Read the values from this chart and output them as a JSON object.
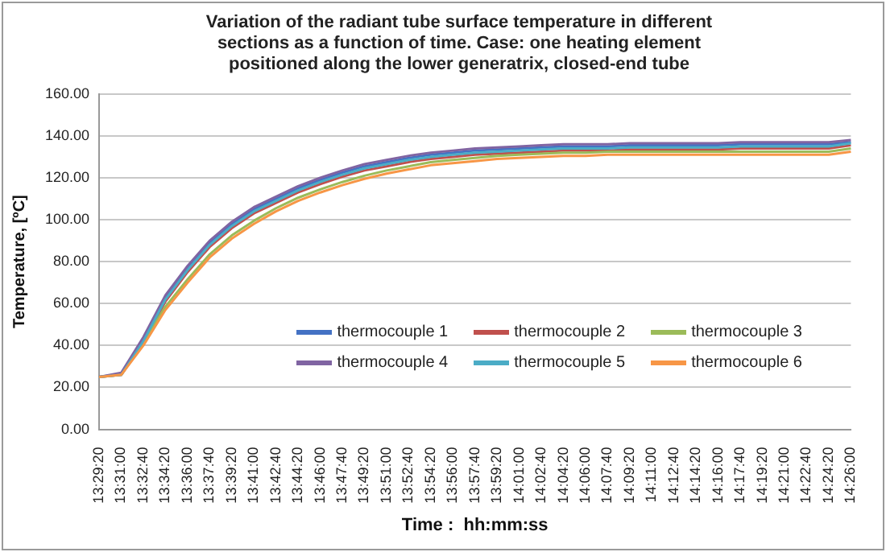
{
  "chart_data": {
    "type": "line",
    "title": "Variation of the radiant tube surface temperature in different sections as a function of time. Case: one heating element positioned along the lower generatrix, closed-end tube",
    "xlabel": "Time :  hh:mm:ss",
    "ylabel": "Temperature, [ºC]",
    "categories": [
      "13:29:20",
      "13:31:00",
      "13:32:40",
      "13:34:20",
      "13:36:00",
      "13:37:40",
      "13:39:20",
      "13:41:00",
      "13:42:40",
      "13:44:20",
      "13:46:00",
      "13:47:40",
      "13:49:20",
      "13:51:00",
      "13:52:40",
      "13:54:20",
      "13:56:00",
      "13:57:40",
      "13:59:20",
      "14:01:00",
      "14:02:40",
      "14:04:20",
      "14:06:00",
      "14:07:40",
      "14:09:20",
      "14:11:00",
      "14:12:40",
      "14:14:20",
      "14:16:00",
      "14:17:40",
      "14:19:20",
      "14:21:00",
      "14:22:40",
      "14:24:20",
      "14:26:00"
    ],
    "series": [
      {
        "name": "thermocouple 1",
        "color": "#4472c4",
        "values": [
          25,
          26.5,
          43,
          63,
          77,
          89,
          98,
          105,
          110,
          115,
          119,
          122.5,
          125.5,
          127.5,
          129.5,
          131,
          132,
          133,
          133.5,
          134,
          134.5,
          135,
          135,
          135,
          135.5,
          135.5,
          135.5,
          135.5,
          135.5,
          136,
          136,
          136,
          136,
          136,
          137
        ]
      },
      {
        "name": "thermocouple 2",
        "color": "#c0504d",
        "values": [
          25,
          26,
          41,
          61,
          75,
          87,
          96,
          103,
          108,
          113,
          117,
          120.5,
          123.5,
          125.5,
          127.5,
          129,
          130,
          131,
          131.5,
          132,
          132.5,
          133,
          133,
          133,
          133.5,
          133.5,
          133.5,
          133.5,
          133.5,
          134,
          134,
          134,
          134,
          134,
          135.5
        ]
      },
      {
        "name": "thermocouple 3",
        "color": "#9bbb59",
        "values": [
          25,
          26,
          41.5,
          58.5,
          71.5,
          83.5,
          92.5,
          99.5,
          105.5,
          110.5,
          114.5,
          118,
          121,
          123.5,
          125.5,
          127.5,
          128.5,
          129.5,
          130.5,
          131,
          131.5,
          132,
          132,
          132.5,
          132.5,
          132.5,
          132.5,
          132.5,
          132.5,
          132.5,
          132.5,
          132.5,
          132.5,
          132.5,
          134
        ]
      },
      {
        "name": "thermocouple 4",
        "color": "#8064a2",
        "values": [
          25,
          27,
          44,
          64,
          78,
          90,
          99,
          106,
          111,
          116,
          120,
          123.5,
          126.5,
          128.5,
          130.5,
          132,
          133,
          134,
          134.5,
          135,
          135.5,
          136,
          136,
          136,
          136.5,
          136.5,
          136.5,
          136.5,
          136.5,
          137,
          137,
          137,
          137,
          137,
          138
        ]
      },
      {
        "name": "thermocouple 5",
        "color": "#4bacc6",
        "values": [
          25,
          26,
          42,
          62,
          76,
          88,
          97,
          104,
          109,
          114,
          118,
          121.5,
          124.5,
          126.5,
          128.5,
          130,
          131,
          132,
          132.5,
          133,
          133.5,
          134,
          134,
          134,
          134.5,
          134.5,
          134.5,
          134.5,
          134.5,
          135,
          135,
          135,
          135,
          135,
          136.5
        ]
      },
      {
        "name": "thermocouple 6",
        "color": "#f79646",
        "values": [
          25,
          26,
          40,
          57,
          70,
          82,
          91,
          98,
          104,
          109,
          113,
          116.5,
          119.5,
          122,
          124,
          126,
          127,
          128,
          129,
          129.5,
          130,
          130.5,
          130.5,
          131,
          131,
          131,
          131,
          131,
          131,
          131,
          131,
          131,
          131,
          131,
          132.5
        ]
      }
    ],
    "ylim": [
      0,
      160
    ],
    "yticks": [
      {
        "value": 0,
        "label": "0.00"
      },
      {
        "value": 20,
        "label": "20.00"
      },
      {
        "value": 40,
        "label": "40.00"
      },
      {
        "value": 60,
        "label": "60.00"
      },
      {
        "value": 80,
        "label": "80.00"
      },
      {
        "value": 100,
        "label": "100.00"
      },
      {
        "value": 120,
        "label": "120.00"
      },
      {
        "value": 140,
        "label": "140.00"
      },
      {
        "value": 160,
        "label": "160.00"
      }
    ],
    "grid": "y",
    "legend": "bottom right",
    "marker": "none",
    "line_style": "solid"
  }
}
